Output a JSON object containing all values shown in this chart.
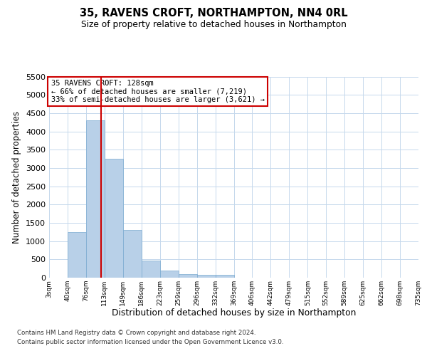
{
  "title": "35, RAVENS CROFT, NORTHAMPTON, NN4 0RL",
  "subtitle": "Size of property relative to detached houses in Northampton",
  "xlabel": "Distribution of detached houses by size in Northampton",
  "ylabel": "Number of detached properties",
  "footer_line1": "Contains HM Land Registry data © Crown copyright and database right 2024.",
  "footer_line2": "Contains public sector information licensed under the Open Government Licence v3.0.",
  "bin_labels": [
    "3sqm",
    "40sqm",
    "76sqm",
    "113sqm",
    "149sqm",
    "186sqm",
    "223sqm",
    "259sqm",
    "296sqm",
    "332sqm",
    "369sqm",
    "406sqm",
    "442sqm",
    "479sqm",
    "515sqm",
    "552sqm",
    "589sqm",
    "625sqm",
    "662sqm",
    "698sqm",
    "735sqm"
  ],
  "bar_values": [
    0,
    1250,
    4300,
    3250,
    1300,
    475,
    200,
    100,
    75,
    75,
    0,
    0,
    0,
    0,
    0,
    0,
    0,
    0,
    0,
    0
  ],
  "bar_color": "#b8d0e8",
  "bar_edge_color": "#7aaad0",
  "red_line_x": 2.83,
  "annotation_title": "35 RAVENS CROFT: 128sqm",
  "annotation_line2": "← 66% of detached houses are smaller (7,219)",
  "annotation_line3": "33% of semi-detached houses are larger (3,621) →",
  "annotation_box_color": "#cc0000",
  "ylim_max": 5500,
  "yticks": [
    0,
    500,
    1000,
    1500,
    2000,
    2500,
    3000,
    3500,
    4000,
    4500,
    5000,
    5500
  ],
  "background_color": "#ffffff",
  "grid_color": "#c5d8ec"
}
